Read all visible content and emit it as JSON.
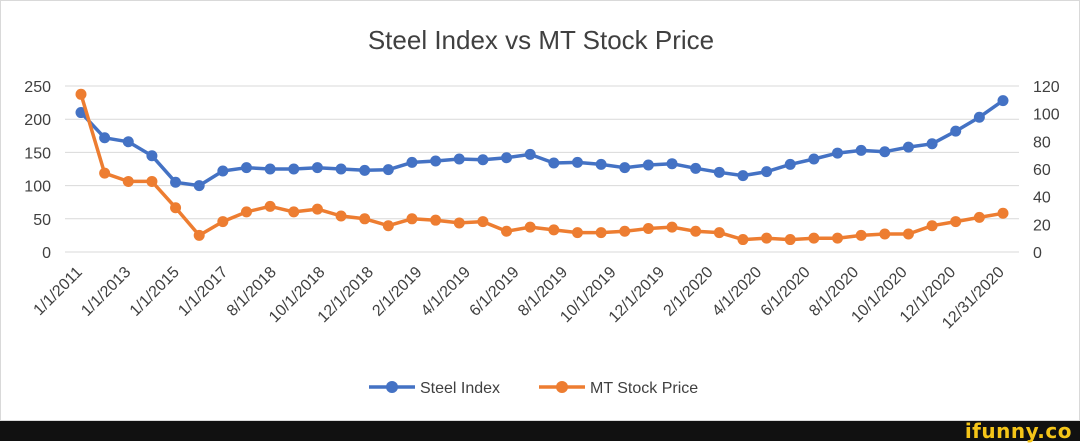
{
  "chart_data": {
    "type": "line",
    "title": "Steel Index vs MT Stock Price",
    "x_tick_labels": [
      "1/1/2011",
      "1/1/2013",
      "1/1/2015",
      "1/1/2017",
      "8/1/2018",
      "10/1/2018",
      "12/1/2018",
      "2/1/2019",
      "4/1/2019",
      "6/1/2019",
      "8/1/2019",
      "10/1/2019",
      "12/1/2019",
      "2/1/2020",
      "4/1/2020",
      "6/1/2020",
      "8/1/2020",
      "10/1/2020",
      "12/1/2020",
      "12/31/2020"
    ],
    "y_left": {
      "min": 0,
      "max": 250,
      "ticks": [
        0,
        50,
        100,
        150,
        200,
        250
      ]
    },
    "y_right": {
      "min": 0,
      "max": 120,
      "ticks": [
        0,
        20,
        40,
        60,
        80,
        100,
        120
      ]
    },
    "grid": true,
    "legend_position": "bottom",
    "series": [
      {
        "name": "Steel Index",
        "axis": "left",
        "color": "#4472c4",
        "values": [
          210,
          172,
          166,
          145,
          105,
          100,
          122,
          127,
          125,
          125,
          127,
          125,
          123,
          124,
          135,
          137,
          140,
          139,
          142,
          147,
          134,
          135,
          132,
          127,
          131,
          133,
          126,
          120,
          115,
          121,
          132,
          140,
          149,
          153,
          151,
          158,
          163,
          182,
          203,
          228
        ]
      },
      {
        "name": "MT Stock Price",
        "axis": "right",
        "color": "#ed7d31",
        "values": [
          114,
          57,
          51,
          51,
          32,
          12,
          22,
          29,
          33,
          29,
          31,
          26,
          24,
          19,
          24,
          23,
          21,
          22,
          15,
          18,
          16,
          14,
          14,
          15,
          17,
          18,
          15,
          14,
          9,
          10,
          9,
          10,
          10,
          12,
          13,
          13,
          19,
          22,
          25,
          28
        ]
      }
    ]
  },
  "watermark": "ifunny.co"
}
